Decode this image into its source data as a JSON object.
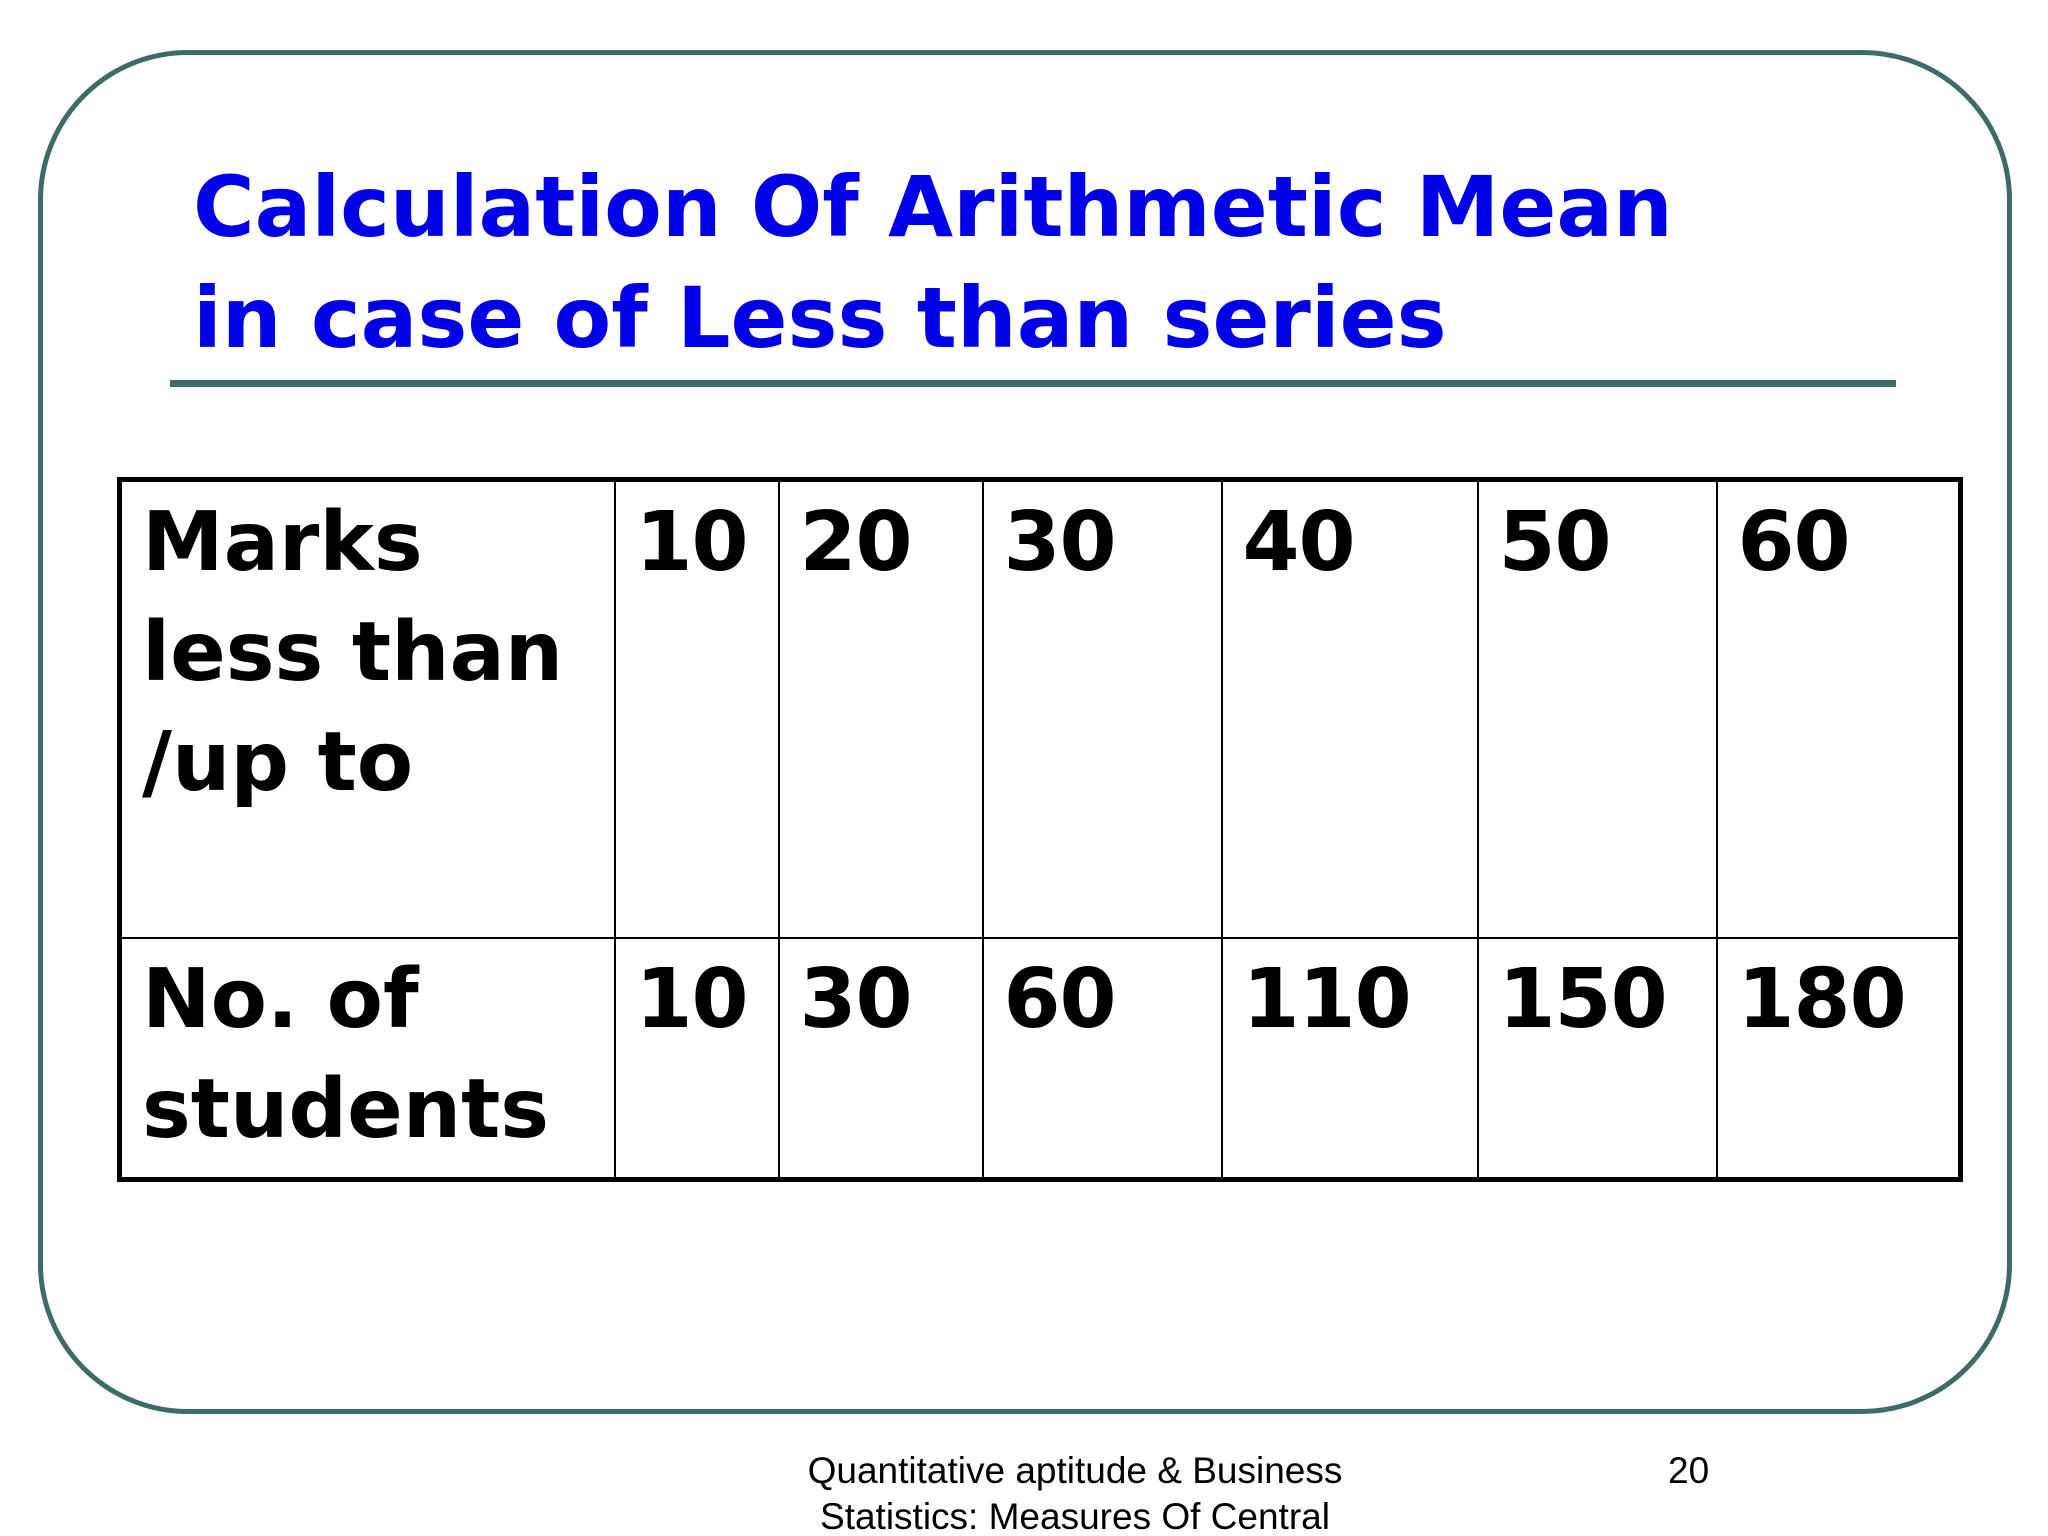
{
  "slide": {
    "title_line1": "Calculation Of Arithmetic Mean",
    "title_line2": "in case of Less than series",
    "table": {
      "row1_label": "Marks less than /up to",
      "row1_values": [
        "10",
        "20",
        "30",
        "40",
        "50",
        "60"
      ],
      "row2_label": "No. of students",
      "row2_values": [
        "10",
        "30",
        "60",
        "110",
        "150",
        "180"
      ]
    },
    "footer_line1": "Quantitative aptitude & Business",
    "footer_line2": "Statistics: Measures Of Central",
    "page_number": "20",
    "colors": {
      "title": "#0000e6",
      "frame": "#3d6b68",
      "rule": "#3d6b68",
      "text": "#000000"
    }
  }
}
